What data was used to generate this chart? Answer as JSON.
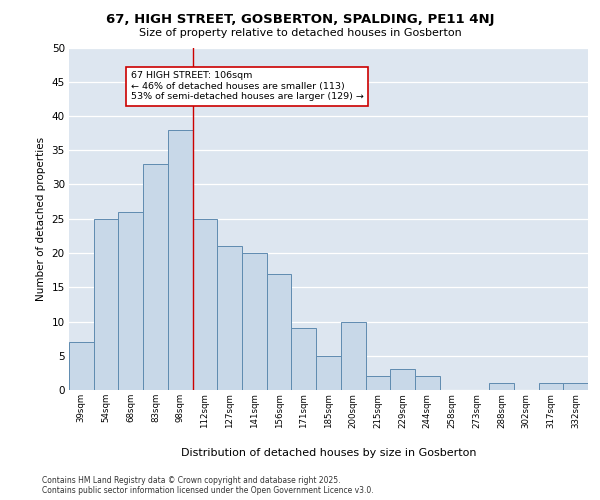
{
  "title_line1": "67, HIGH STREET, GOSBERTON, SPALDING, PE11 4NJ",
  "title_line2": "Size of property relative to detached houses in Gosberton",
  "xlabel": "Distribution of detached houses by size in Gosberton",
  "ylabel": "Number of detached properties",
  "categories": [
    "39sqm",
    "54sqm",
    "68sqm",
    "83sqm",
    "98sqm",
    "112sqm",
    "127sqm",
    "141sqm",
    "156sqm",
    "171sqm",
    "185sqm",
    "200sqm",
    "215sqm",
    "229sqm",
    "244sqm",
    "258sqm",
    "273sqm",
    "288sqm",
    "302sqm",
    "317sqm",
    "332sqm"
  ],
  "values": [
    7,
    25,
    26,
    33,
    38,
    25,
    21,
    20,
    17,
    9,
    5,
    10,
    2,
    3,
    2,
    0,
    0,
    1,
    0,
    1,
    1
  ],
  "bar_color": "#c8d8e8",
  "bar_edge_color": "#5f8bb0",
  "background_color": "#dde6f0",
  "grid_color": "#ffffff",
  "vline_x": 4.5,
  "vline_color": "#cc0000",
  "annotation_text": "67 HIGH STREET: 106sqm\n← 46% of detached houses are smaller (113)\n53% of semi-detached houses are larger (129) →",
  "annotation_box_color": "#ffffff",
  "annotation_box_edge": "#cc0000",
  "ylim": [
    0,
    50
  ],
  "yticks": [
    0,
    5,
    10,
    15,
    20,
    25,
    30,
    35,
    40,
    45,
    50
  ],
  "footer_line1": "Contains HM Land Registry data © Crown copyright and database right 2025.",
  "footer_line2": "Contains public sector information licensed under the Open Government Licence v3.0."
}
